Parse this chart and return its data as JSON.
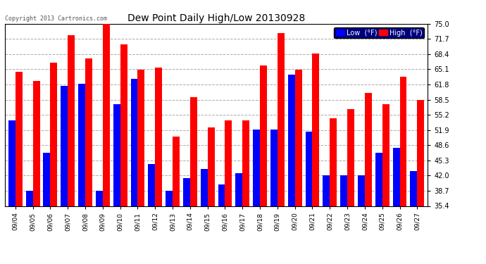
{
  "title": "Dew Point Daily High/Low 20130928",
  "copyright": "Copyright 2013 Cartronics.com",
  "dates": [
    "09/04",
    "09/05",
    "09/06",
    "09/07",
    "09/08",
    "09/09",
    "09/10",
    "09/11",
    "09/12",
    "09/13",
    "09/14",
    "09/15",
    "09/16",
    "09/17",
    "09/18",
    "09/19",
    "09/20",
    "09/21",
    "09/22",
    "09/23",
    "09/24",
    "09/25",
    "09/26",
    "09/27"
  ],
  "low_values": [
    54.0,
    38.7,
    47.0,
    61.5,
    62.0,
    38.7,
    57.5,
    63.0,
    44.5,
    38.7,
    41.5,
    43.5,
    40.0,
    42.5,
    52.0,
    52.0,
    64.0,
    51.5,
    42.0,
    42.0,
    42.0,
    47.0,
    48.0,
    43.0
  ],
  "high_values": [
    64.5,
    62.5,
    66.5,
    72.5,
    67.5,
    75.0,
    70.5,
    65.0,
    65.5,
    50.5,
    59.0,
    52.5,
    54.0,
    54.0,
    66.0,
    73.0,
    65.0,
    68.5,
    54.5,
    56.5,
    60.0,
    57.5,
    63.5,
    58.5
  ],
  "low_color": "#0000ff",
  "high_color": "#ff0000",
  "bg_color": "#ffffff",
  "grid_color": "#aaaaaa",
  "ylim_min": 35.4,
  "ylim_max": 75.0,
  "yticks": [
    35.4,
    38.7,
    42.0,
    45.3,
    48.6,
    51.9,
    55.2,
    58.5,
    61.8,
    65.1,
    68.4,
    71.7,
    75.0
  ],
  "legend_low_label": "Low  (°F)",
  "legend_high_label": "High  (°F)"
}
